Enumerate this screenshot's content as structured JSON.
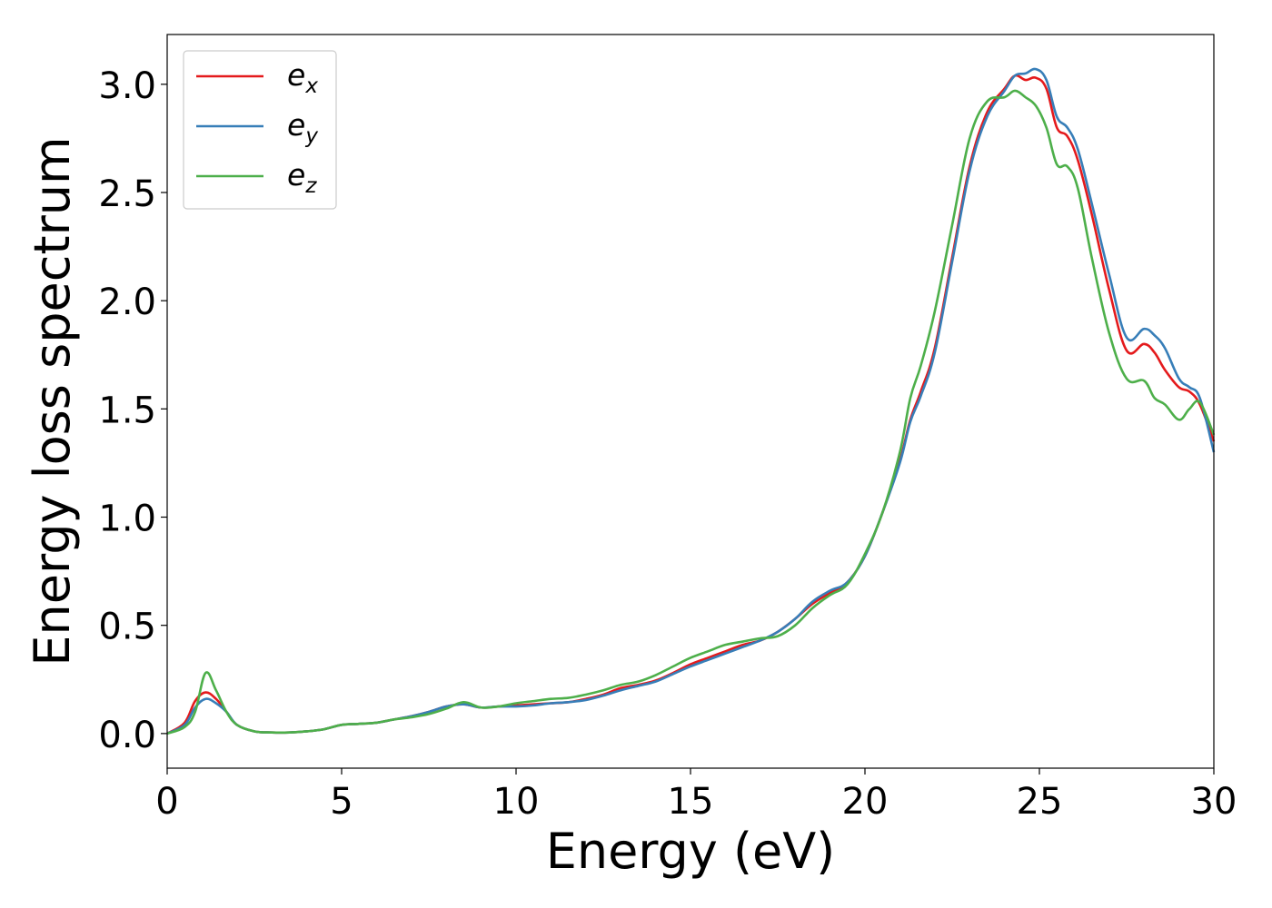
{
  "chart_data": {
    "type": "line",
    "title": "",
    "xlabel": "Energy (eV)",
    "ylabel": "Energy loss spectrum",
    "xlim": [
      0,
      30
    ],
    "ylim": [
      -0.16,
      3.23
    ],
    "xticks": [
      0,
      5,
      10,
      15,
      20,
      25,
      30
    ],
    "xtick_labels": [
      "0",
      "5",
      "10",
      "15",
      "20",
      "25",
      "30"
    ],
    "yticks": [
      0.0,
      0.5,
      1.0,
      1.5,
      2.0,
      2.5,
      3.0
    ],
    "ytick_labels": [
      "0.0",
      "0.5",
      "1.0",
      "1.5",
      "2.0",
      "2.5",
      "3.0"
    ],
    "grid": false,
    "legend_position": "top-left",
    "x": [
      0,
      0.5,
      0.8,
      1.1,
      1.4,
      1.7,
      2.0,
      2.5,
      3.0,
      3.5,
      4.0,
      4.5,
      5.0,
      5.5,
      6.0,
      6.5,
      7.0,
      7.5,
      8.0,
      8.5,
      9.0,
      9.5,
      10.0,
      10.5,
      11.0,
      11.5,
      12.0,
      12.5,
      13.0,
      13.5,
      14.0,
      14.5,
      15.0,
      15.5,
      16.0,
      16.5,
      17.0,
      17.5,
      18.0,
      18.5,
      19.0,
      19.5,
      20.0,
      20.5,
      21.0,
      21.3,
      21.6,
      22.0,
      22.5,
      23.0,
      23.5,
      24.0,
      24.3,
      24.6,
      24.9,
      25.2,
      25.5,
      25.8,
      26.1,
      26.5,
      27.0,
      27.5,
      28.0,
      28.3,
      28.6,
      29.0,
      29.3,
      29.6,
      30.0
    ],
    "series": [
      {
        "name": "e_x",
        "legend_main": "e",
        "legend_sub": "x",
        "color": "#e41a1c",
        "values": [
          0.0,
          0.05,
          0.15,
          0.19,
          0.16,
          0.1,
          0.04,
          0.01,
          0.005,
          0.005,
          0.01,
          0.02,
          0.04,
          0.045,
          0.05,
          0.065,
          0.08,
          0.1,
          0.125,
          0.135,
          0.12,
          0.125,
          0.13,
          0.135,
          0.14,
          0.145,
          0.16,
          0.18,
          0.21,
          0.225,
          0.245,
          0.28,
          0.32,
          0.35,
          0.38,
          0.41,
          0.43,
          0.47,
          0.53,
          0.6,
          0.65,
          0.7,
          0.82,
          1.02,
          1.26,
          1.45,
          1.58,
          1.78,
          2.2,
          2.62,
          2.87,
          2.98,
          3.04,
          3.02,
          3.03,
          2.98,
          2.8,
          2.76,
          2.65,
          2.4,
          2.05,
          1.77,
          1.8,
          1.76,
          1.68,
          1.6,
          1.58,
          1.52,
          1.35
        ]
      },
      {
        "name": "e_y",
        "legend_main": "e",
        "legend_sub": "y",
        "color": "#377eb8",
        "values": [
          0.0,
          0.04,
          0.12,
          0.16,
          0.14,
          0.1,
          0.04,
          0.01,
          0.005,
          0.005,
          0.01,
          0.02,
          0.04,
          0.045,
          0.05,
          0.065,
          0.08,
          0.1,
          0.125,
          0.135,
          0.12,
          0.125,
          0.125,
          0.13,
          0.14,
          0.145,
          0.155,
          0.175,
          0.2,
          0.22,
          0.24,
          0.275,
          0.31,
          0.34,
          0.37,
          0.4,
          0.43,
          0.47,
          0.53,
          0.61,
          0.66,
          0.7,
          0.82,
          1.02,
          1.25,
          1.44,
          1.56,
          1.76,
          2.18,
          2.6,
          2.85,
          2.97,
          3.04,
          3.05,
          3.07,
          3.02,
          2.85,
          2.8,
          2.7,
          2.45,
          2.12,
          1.83,
          1.87,
          1.84,
          1.78,
          1.64,
          1.6,
          1.55,
          1.3
        ]
      },
      {
        "name": "e_z",
        "legend_main": "e",
        "legend_sub": "z",
        "color": "#4daf4a",
        "values": [
          0.0,
          0.03,
          0.1,
          0.28,
          0.2,
          0.1,
          0.04,
          0.01,
          0.005,
          0.005,
          0.01,
          0.02,
          0.04,
          0.045,
          0.05,
          0.065,
          0.075,
          0.09,
          0.115,
          0.145,
          0.12,
          0.125,
          0.14,
          0.15,
          0.16,
          0.165,
          0.18,
          0.2,
          0.225,
          0.24,
          0.27,
          0.31,
          0.35,
          0.38,
          0.41,
          0.425,
          0.44,
          0.45,
          0.5,
          0.58,
          0.64,
          0.69,
          0.83,
          1.02,
          1.3,
          1.55,
          1.7,
          1.95,
          2.35,
          2.75,
          2.92,
          2.94,
          2.97,
          2.94,
          2.9,
          2.8,
          2.63,
          2.62,
          2.52,
          2.2,
          1.85,
          1.64,
          1.63,
          1.55,
          1.52,
          1.45,
          1.5,
          1.53,
          1.38
        ]
      }
    ]
  }
}
